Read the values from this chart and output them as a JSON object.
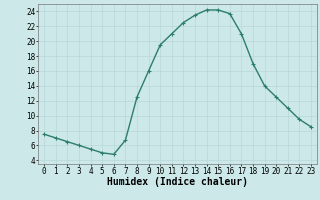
{
  "x": [
    0,
    1,
    2,
    3,
    4,
    5,
    6,
    7,
    8,
    9,
    10,
    11,
    12,
    13,
    14,
    15,
    16,
    17,
    18,
    19,
    20,
    21,
    22,
    23
  ],
  "y": [
    7.5,
    7.0,
    6.5,
    6.0,
    5.5,
    5.0,
    4.8,
    6.7,
    12.5,
    16.0,
    19.5,
    21.0,
    22.5,
    23.5,
    24.2,
    24.2,
    23.7,
    21.0,
    17.0,
    14.0,
    12.5,
    11.0,
    9.5,
    8.5
  ],
  "line_color": "#2d7d6e",
  "marker": "+",
  "bg_color": "#cce8e8",
  "grid_major_color": "#b8d8d8",
  "grid_minor_color": "#d0e8e8",
  "xlabel": "Humidex (Indice chaleur)",
  "xlim": [
    -0.5,
    23.5
  ],
  "ylim": [
    3.5,
    25.0
  ],
  "yticks": [
    4,
    6,
    8,
    10,
    12,
    14,
    16,
    18,
    20,
    22,
    24
  ],
  "xticks": [
    0,
    1,
    2,
    3,
    4,
    5,
    6,
    7,
    8,
    9,
    10,
    11,
    12,
    13,
    14,
    15,
    16,
    17,
    18,
    19,
    20,
    21,
    22,
    23
  ],
  "xlabel_fontsize": 7,
  "tick_fontsize": 5.5,
  "line_width": 1.0,
  "marker_size": 3.5,
  "marker_edge_width": 0.8
}
